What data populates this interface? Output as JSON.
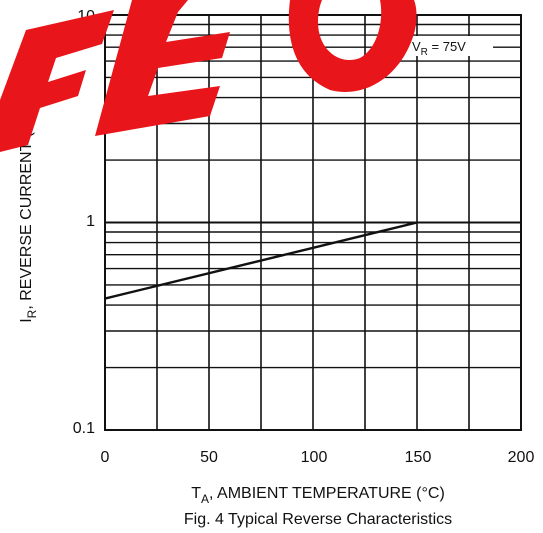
{
  "chart_data": {
    "type": "line",
    "caption": "Fig. 4  Typical Reverse Characteristics",
    "xlabel_main": "T",
    "xlabel_sub": "A",
    "xlabel_rest": ", AMBIENT TEMPERATURE (°C)",
    "ylabel_main": "I",
    "ylabel_sub": "R",
    "ylabel_rest": ", REVERSE CURRENT (nA)",
    "annotation_main": "V",
    "annotation_sub": "R",
    "annotation_rest": " = 75V",
    "xlim": [
      0,
      200
    ],
    "ylim": [
      0.1,
      10
    ],
    "yscale": "log",
    "x_ticks": [
      "0",
      "50",
      "100",
      "150",
      "200"
    ],
    "y_ticks": [
      "0.1",
      "1",
      "10"
    ],
    "x_tick_values": [
      0,
      50,
      100,
      150,
      200
    ],
    "y_tick_values": [
      0.1,
      1,
      10
    ],
    "grid": true,
    "series": [
      {
        "x": [
          0,
          150
        ],
        "y": [
          0.43,
          1.0
        ]
      }
    ],
    "watermark": {
      "text": "FEO",
      "color": "#e8151b"
    },
    "colors": {
      "line": "#111111",
      "grid": "#111111"
    }
  }
}
